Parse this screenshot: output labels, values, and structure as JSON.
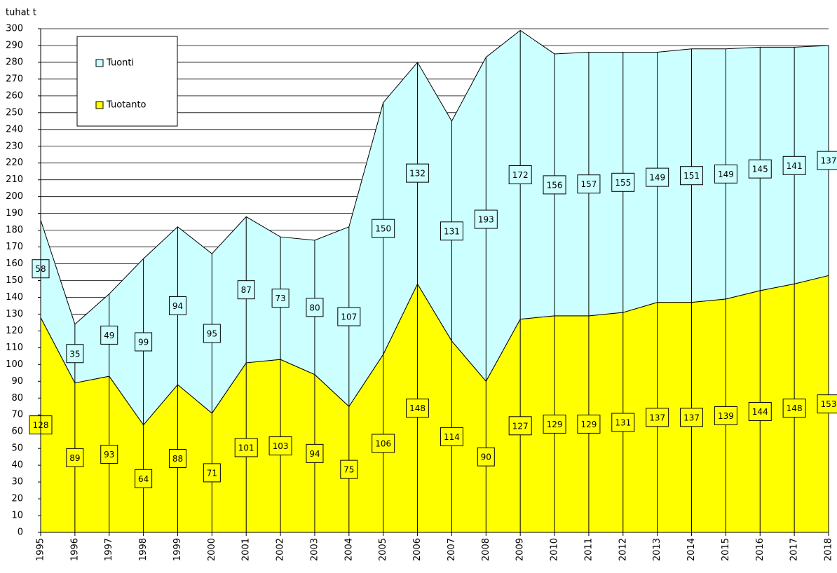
{
  "chart_data": {
    "type": "stacked_area",
    "y_label": "tuhat t",
    "categories": [
      "1995",
      "1996",
      "1997",
      "1998",
      "1999",
      "2000",
      "2001",
      "2002",
      "2003",
      "2004",
      "2005",
      "2006",
      "2007",
      "2008",
      "2009",
      "2010",
      "2011",
      "2012",
      "2013",
      "2014",
      "2015",
      "2016",
      "2017",
      "2018"
    ],
    "series": [
      {
        "name": "Tuotanto",
        "color": "#ffff00",
        "values": [
          128,
          89,
          93,
          64,
          88,
          71,
          101,
          103,
          94,
          75,
          106,
          148,
          114,
          90,
          127,
          129,
          129,
          131,
          137,
          137,
          139,
          144,
          148,
          153
        ]
      },
      {
        "name": "Tuonti",
        "color": "#ccffff",
        "values": [
          58,
          35,
          49,
          99,
          94,
          95,
          87,
          73,
          80,
          107,
          150,
          132,
          131,
          193,
          172,
          156,
          157,
          155,
          149,
          151,
          149,
          145,
          141,
          137
        ]
      }
    ],
    "ylim": [
      0,
      300
    ],
    "yticks": [
      0,
      10,
      20,
      30,
      40,
      50,
      60,
      70,
      80,
      90,
      100,
      110,
      120,
      130,
      140,
      150,
      160,
      170,
      180,
      190,
      200,
      210,
      220,
      230,
      240,
      250,
      260,
      270,
      280,
      290,
      300
    ],
    "grid": true,
    "legend": "top-left"
  }
}
